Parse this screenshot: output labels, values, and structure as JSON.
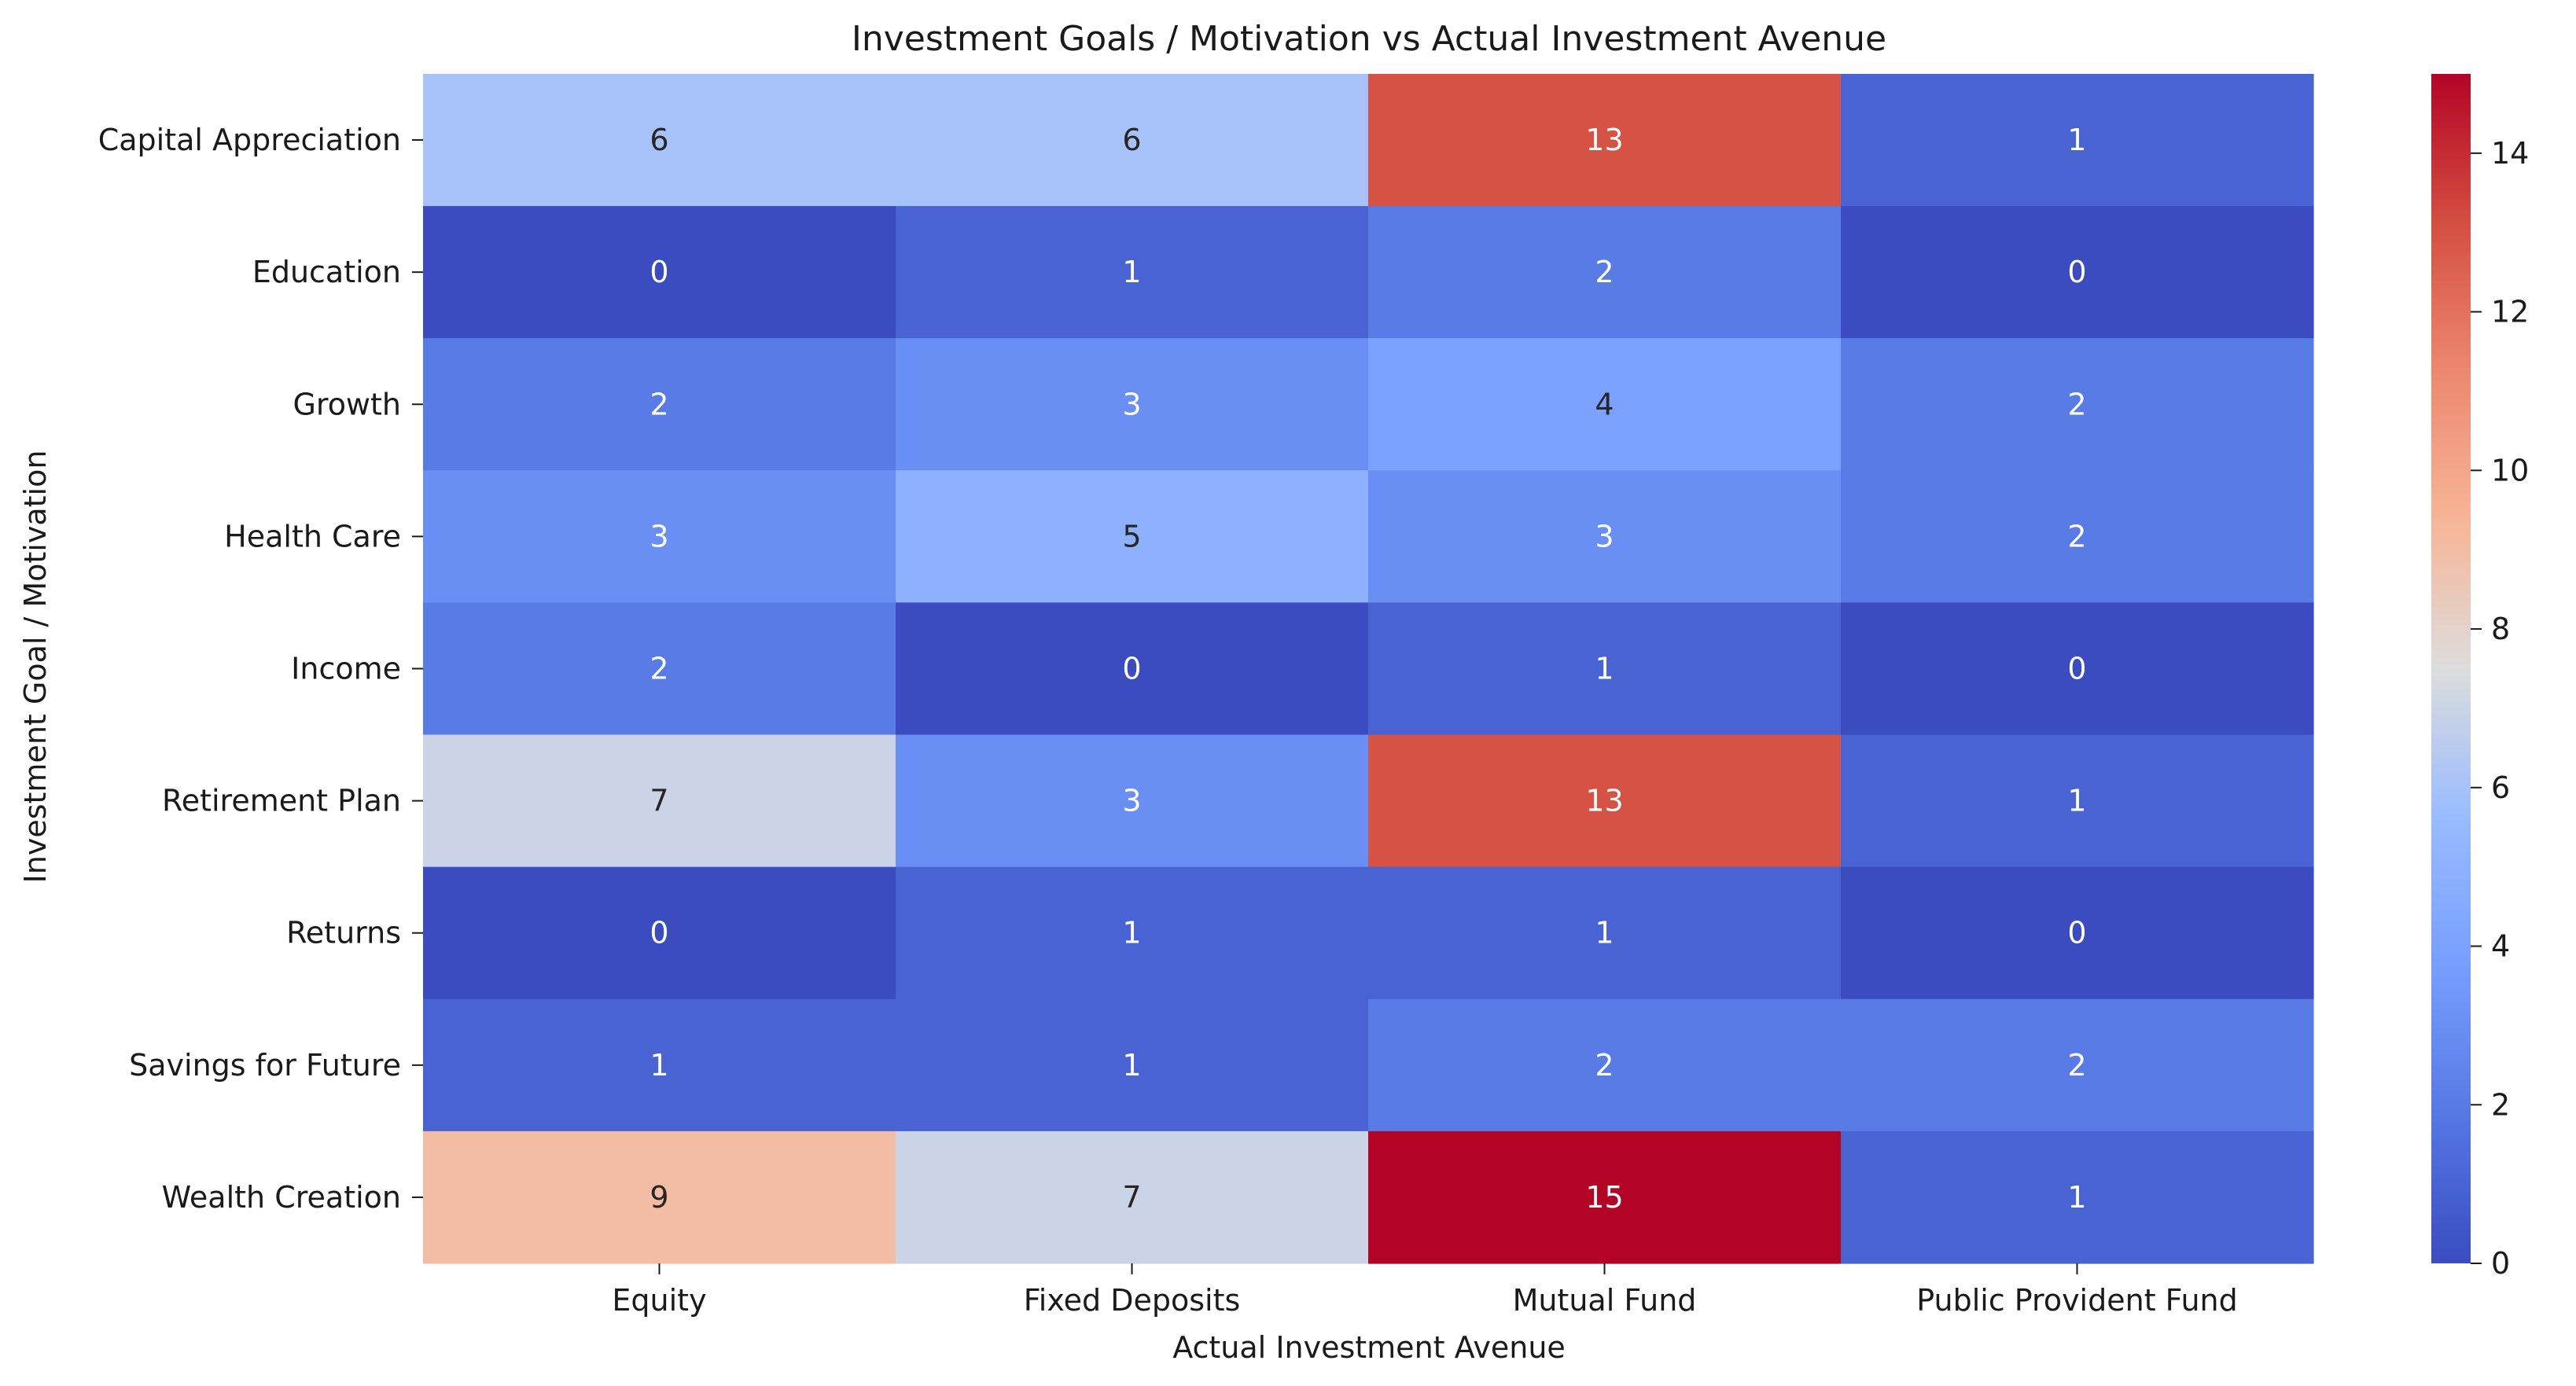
{
  "chart_data": {
    "type": "heatmap",
    "title": "Investment Goals / Motivation vs Actual Investment Avenue",
    "xlabel": "Actual Investment Avenue",
    "ylabel": "Investment Goal / Motivation",
    "x_categories": [
      "Equity",
      "Fixed Deposits",
      "Mutual Fund",
      "Public Provident Fund"
    ],
    "y_categories": [
      "Capital Appreciation",
      "Education",
      "Growth",
      "Health Care",
      "Income",
      "Retirement Plan",
      "Returns",
      "Savings for Future",
      "Wealth Creation"
    ],
    "values": [
      [
        6,
        6,
        13,
        1
      ],
      [
        0,
        1,
        2,
        0
      ],
      [
        2,
        3,
        4,
        2
      ],
      [
        3,
        5,
        3,
        2
      ],
      [
        2,
        0,
        1,
        0
      ],
      [
        7,
        3,
        13,
        1
      ],
      [
        0,
        1,
        1,
        0
      ],
      [
        1,
        1,
        2,
        2
      ],
      [
        9,
        7,
        15,
        1
      ]
    ],
    "colormap": "coolwarm",
    "color_range": [
      0,
      15
    ],
    "colorbar_ticks": [
      0,
      2,
      4,
      6,
      8,
      10,
      12,
      14
    ],
    "annotations": true
  }
}
